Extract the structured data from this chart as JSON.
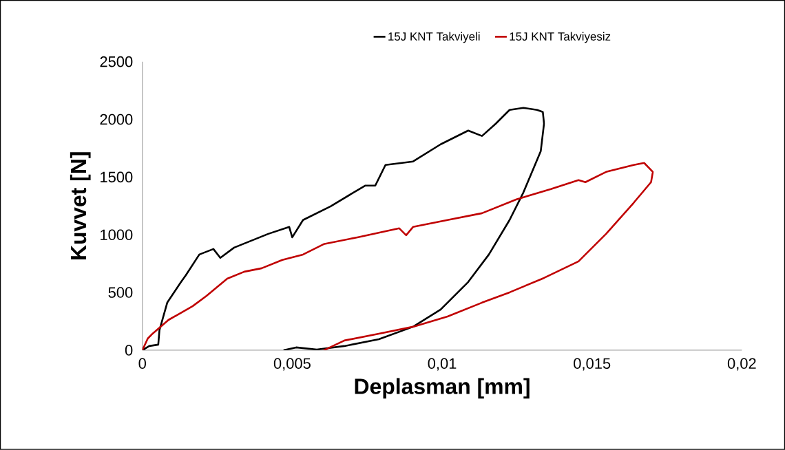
{
  "chart_data": {
    "type": "line",
    "xlabel": "Deplasman [mm]",
    "ylabel": "Kuvvet [N]",
    "xlim": [
      0,
      0.02
    ],
    "ylim": [
      0,
      2500
    ],
    "xticks": [
      0,
      {
        "value": 0.005,
        "label": "0,005"
      },
      {
        "value": 0.01,
        "label": "0,01"
      },
      {
        "value": 0.015,
        "label": "0,015"
      },
      {
        "value": 0.02,
        "label": "0,02"
      }
    ],
    "yticks": [
      0,
      500,
      1000,
      1500,
      2000,
      2500
    ],
    "grid": false,
    "legend": "top",
    "marker": "none",
    "line_style": "solid",
    "series": [
      {
        "name": "15J KNT Takviyeli",
        "color": "#000000",
        "x": [
          0,
          0.00023,
          0.00053,
          0.00057,
          0.00083,
          0.00129,
          0.00145,
          0.0019,
          0.00237,
          0.0026,
          0.00306,
          0.0042,
          0.0049,
          0.005,
          0.00536,
          0.00628,
          0.00743,
          0.00777,
          0.00811,
          0.00903,
          0.00995,
          0.01087,
          0.01133,
          0.01179,
          0.01225,
          0.01271,
          0.01317,
          0.01336,
          0.0134,
          0.01329,
          0.01271,
          0.01225,
          0.01156,
          0.01087,
          0.00995,
          0.00903,
          0.00789,
          0.00674,
          0.00582,
          0.00513,
          0.00471
        ],
        "values": [
          0,
          36,
          48,
          173,
          412,
          591,
          650,
          829,
          877,
          800,
          889,
          1008,
          1068,
          978,
          1128,
          1247,
          1426,
          1426,
          1605,
          1635,
          1784,
          1903,
          1856,
          1963,
          2082,
          2100,
          2082,
          2064,
          1963,
          1724,
          1366,
          1128,
          829,
          591,
          352,
          203,
          95,
          36,
          6,
          24,
          0
        ]
      },
      {
        "name": "15J KNT Takviyesiz",
        "color": "#c00000",
        "x": [
          0,
          0.00018,
          0.00034,
          0.00087,
          0.00168,
          0.00214,
          0.00283,
          0.0034,
          0.00398,
          0.00467,
          0.00536,
          0.00605,
          0.0072,
          0.00857,
          0.0088,
          0.00903,
          0.01018,
          0.01133,
          0.01248,
          0.01363,
          0.01455,
          0.01478,
          0.01547,
          0.01639,
          0.01674,
          0.01692,
          0.01703,
          0.01697,
          0.01639,
          0.01547,
          0.01455,
          0.0134,
          0.01225,
          0.01133,
          0.01018,
          0.00903,
          0.00789,
          0.00674,
          0.00616,
          0.00605
        ],
        "values": [
          0,
          101,
          143,
          262,
          382,
          471,
          620,
          680,
          710,
          782,
          829,
          919,
          979,
          1056,
          996,
          1068,
          1128,
          1187,
          1307,
          1396,
          1474,
          1456,
          1545,
          1605,
          1623,
          1575,
          1545,
          1456,
          1277,
          1008,
          770,
          626,
          501,
          412,
          292,
          203,
          143,
          84,
          12,
          0
        ]
      }
    ]
  }
}
